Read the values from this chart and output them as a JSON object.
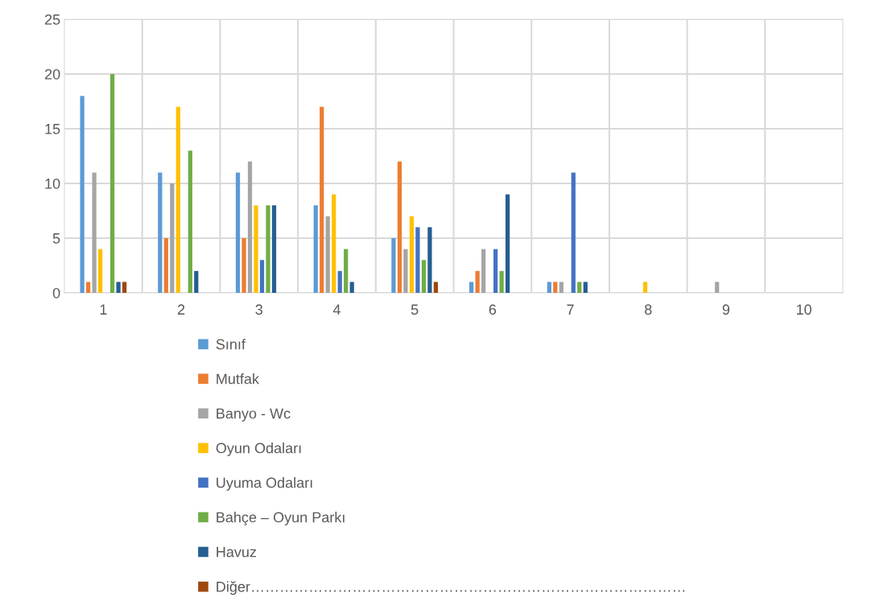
{
  "chart_data": {
    "type": "bar",
    "categories": [
      "1",
      "2",
      "3",
      "4",
      "5",
      "6",
      "7",
      "8",
      "9",
      "10"
    ],
    "series": [
      {
        "name": "Sınıf",
        "color": "#5b9bd5",
        "values": [
          18,
          11,
          11,
          8,
          5,
          1,
          1,
          0,
          0,
          0
        ]
      },
      {
        "name": "Mutfak",
        "color": "#ed7d31",
        "values": [
          1,
          5,
          5,
          17,
          12,
          2,
          1,
          0,
          0,
          0
        ]
      },
      {
        "name": "Banyo - Wc",
        "color": "#a5a5a5",
        "values": [
          11,
          10,
          12,
          7,
          4,
          4,
          1,
          0,
          1,
          0
        ]
      },
      {
        "name": "Oyun Odaları",
        "color": "#ffc000",
        "values": [
          4,
          17,
          8,
          9,
          7,
          0,
          0,
          1,
          0,
          0
        ]
      },
      {
        "name": "Uyuma Odaları",
        "color": "#4472c4",
        "values": [
          0,
          0,
          3,
          2,
          6,
          4,
          11,
          0,
          0,
          0
        ]
      },
      {
        "name": "Bahçe – Oyun Parkı",
        "color": "#70ad47",
        "values": [
          20,
          13,
          8,
          4,
          3,
          2,
          1,
          0,
          0,
          0
        ]
      },
      {
        "name": "Havuz",
        "color": "#255e91",
        "values": [
          1,
          2,
          8,
          1,
          6,
          9,
          1,
          0,
          0,
          0
        ]
      },
      {
        "name": "Diğer………………………………………………………………………………",
        "color": "#9e480e",
        "values": [
          1,
          0,
          0,
          0,
          1,
          0,
          0,
          0,
          0,
          0
        ]
      }
    ],
    "ylim": [
      0,
      25
    ],
    "yticks": [
      0,
      5,
      10,
      15,
      20,
      25
    ],
    "grid": true,
    "legend": "bottom"
  }
}
